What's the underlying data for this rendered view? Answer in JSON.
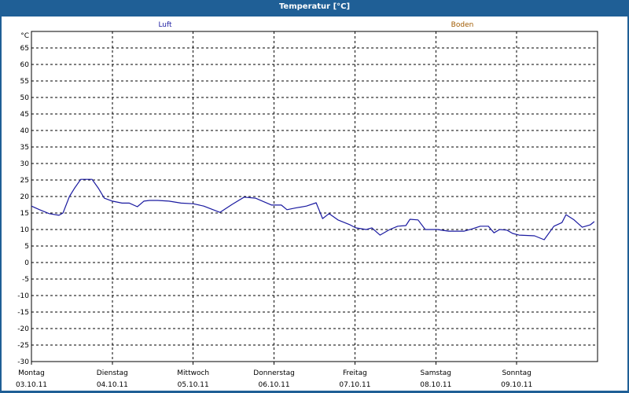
{
  "window": {
    "title": "Temperatur [°C]"
  },
  "legend": {
    "luft": "Luft",
    "boden": "Boden",
    "luft_color": "#1a1aa0",
    "boden_color": "#a05a00"
  },
  "axis": {
    "unit": "°C"
  },
  "chart_data": {
    "type": "line",
    "title": "Temperatur [°C]",
    "xlabel": "",
    "ylabel": "°C",
    "ylim": [
      -30,
      70
    ],
    "yticks": [
      65,
      60,
      55,
      50,
      45,
      40,
      35,
      30,
      25,
      20,
      15,
      10,
      5,
      0,
      -5,
      -10,
      -15,
      -20,
      -25,
      -30
    ],
    "grid": true,
    "legend_position": "top",
    "categories": [
      {
        "day": "Montag",
        "date": "03.10.11"
      },
      {
        "day": "Dienstag",
        "date": "04.10.11"
      },
      {
        "day": "Mittwoch",
        "date": "05.10.11"
      },
      {
        "day": "Donnerstag",
        "date": "06.10.11"
      },
      {
        "day": "Freitag",
        "date": "07.10.11"
      },
      {
        "day": "Samstag",
        "date": "08.10.11"
      },
      {
        "day": "Sonntag",
        "date": "09.10.11"
      }
    ],
    "series": [
      {
        "name": "Luft",
        "color": "#1a1aa0",
        "x_days": [
          0,
          0.1,
          0.22,
          0.34,
          0.39,
          0.47,
          0.53,
          0.61,
          0.75,
          0.83,
          0.9,
          1.0,
          1.12,
          1.21,
          1.31,
          1.39,
          1.46,
          1.56,
          1.7,
          1.85,
          2.0,
          2.13,
          2.33,
          2.48,
          2.63,
          2.77,
          2.97,
          3.09,
          3.16,
          3.26,
          3.4,
          3.52,
          3.6,
          3.68,
          3.79,
          3.94,
          4.01,
          4.14,
          4.21,
          4.31,
          4.43,
          4.53,
          4.63,
          4.68,
          4.78,
          4.87,
          5.02,
          5.16,
          5.35,
          5.45,
          5.55,
          5.65,
          5.72,
          5.79,
          5.88,
          5.95,
          6.03,
          6.22,
          6.34,
          6.46,
          6.56,
          6.61,
          6.71,
          6.81,
          6.91,
          6.96
        ],
        "values": [
          17.1,
          16.0,
          14.8,
          14.3,
          15.0,
          20.0,
          22.4,
          25.2,
          25.2,
          22.4,
          19.5,
          18.6,
          18.0,
          18.0,
          16.9,
          18.6,
          18.8,
          18.8,
          18.6,
          18.0,
          17.8,
          17.1,
          15.2,
          17.6,
          19.8,
          19.5,
          17.4,
          17.4,
          16.0,
          16.5,
          17.1,
          18.1,
          13.3,
          14.8,
          12.9,
          11.4,
          10.5,
          10.0,
          10.5,
          8.3,
          10.0,
          11.0,
          11.2,
          13.1,
          12.9,
          10.0,
          10.0,
          9.5,
          9.5,
          10.2,
          11.0,
          11.0,
          9.0,
          10.0,
          9.8,
          8.8,
          8.3,
          8.1,
          6.9,
          11.0,
          12.1,
          14.5,
          12.9,
          10.7,
          11.4,
          12.4
        ]
      },
      {
        "name": "Boden",
        "color": "#a05a00",
        "values": []
      }
    ]
  }
}
